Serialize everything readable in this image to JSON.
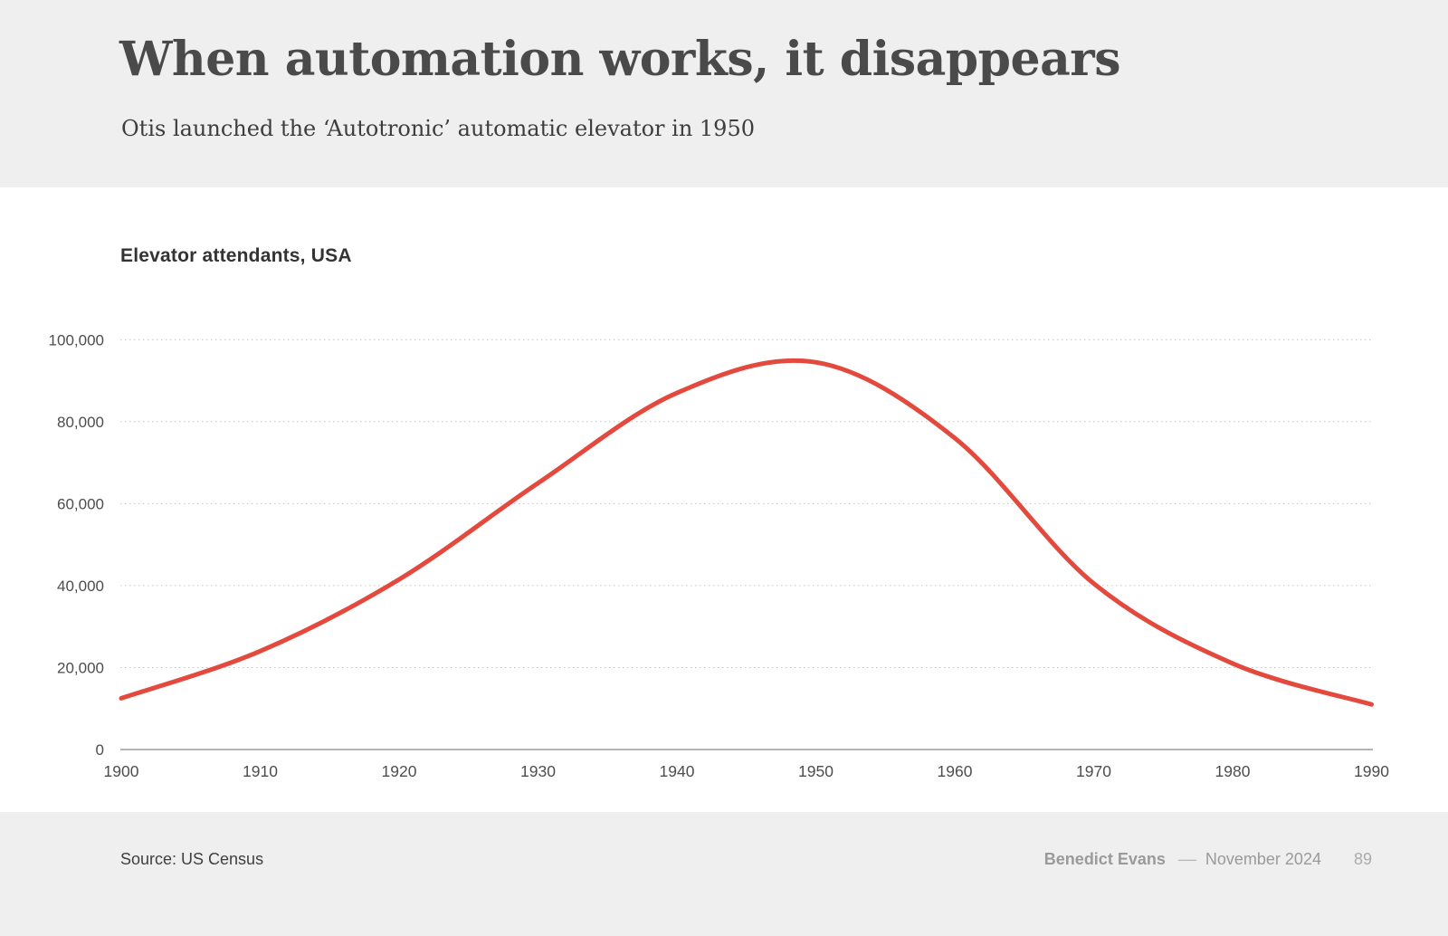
{
  "slide": {
    "title": "When automation works, it disappears",
    "subtitle": "Otis launched the ‘Autotronic’ automatic elevator in 1950"
  },
  "chart": {
    "title": "Elevator attendants, USA"
  },
  "chart_data": {
    "type": "line",
    "title": "Elevator attendants, USA",
    "x": [
      1900,
      1910,
      1920,
      1930,
      1940,
      1950,
      1960,
      1970,
      1980,
      1990
    ],
    "series": [
      {
        "name": "Elevator attendants, USA",
        "values": [
          12500,
          24000,
          41500,
          65000,
          87000,
          94500,
          76000,
          40500,
          21000,
          11000
        ]
      }
    ],
    "xlabel": "",
    "ylabel": "",
    "ylim": [
      0,
      100000
    ],
    "yticks": [
      0,
      20000,
      40000,
      60000,
      80000,
      100000
    ],
    "ytick_labels": [
      "0",
      "20,000",
      "40,000",
      "60,000",
      "80,000",
      "100,000"
    ],
    "xtick_labels": [
      "1900",
      "1910",
      "1920",
      "1930",
      "1940",
      "1950",
      "1960",
      "1970",
      "1980",
      "1990"
    ],
    "grid": "horizontal-dotted",
    "legend_position": "none",
    "line_color": "#e3493d",
    "axis_color": "#9c9c9c",
    "gridline_color": "#c6c6c6",
    "tick_label_color": "#4d4d4d"
  },
  "footer": {
    "source": "Source: US Census",
    "author": "Benedict Evans",
    "separator": "––",
    "date": "November 2024",
    "page": "89"
  }
}
